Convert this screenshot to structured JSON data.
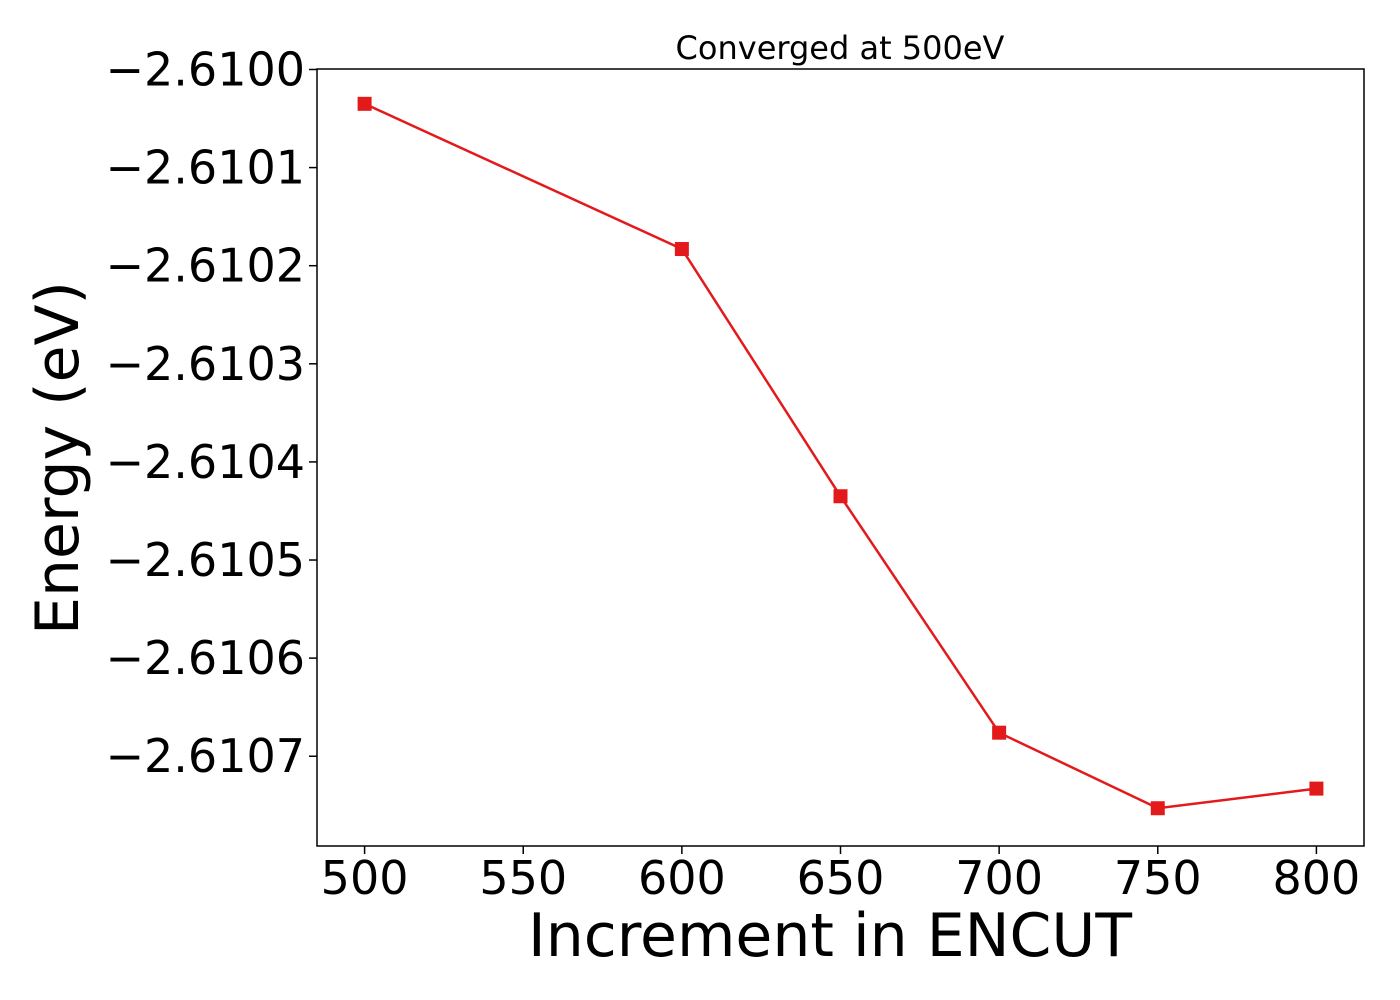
{
  "chart_data": {
    "type": "line",
    "title": "Converged at 500eV",
    "xlabel": "Increment in ENCUT",
    "ylabel": "Energy (eV)",
    "x": [
      500,
      600,
      650,
      700,
      750,
      800
    ],
    "series": [
      {
        "values": [
          -2.610035,
          -2.610183,
          -2.610435,
          -2.610676,
          -2.610753,
          -2.610733
        ],
        "color": "#e31a1c",
        "marker": "square"
      }
    ],
    "xlim": [
      485,
      815
    ],
    "ylim": [
      -2.6107915,
      -2.6099995
    ],
    "xticks": [
      500,
      550,
      600,
      650,
      700,
      750,
      800
    ],
    "xtick_labels": [
      "500",
      "550",
      "600",
      "650",
      "700",
      "750",
      "800"
    ],
    "yticks": [
      -2.61,
      -2.6101,
      -2.6102,
      -2.6103,
      -2.6104,
      -2.6105,
      -2.6106,
      -2.6107
    ],
    "ytick_labels": [
      "−2.6100",
      "−2.6101",
      "−2.6102",
      "−2.6103",
      "−2.6104",
      "−2.6105",
      "−2.6106",
      "−2.6107"
    ],
    "grid": false,
    "legend": "none"
  }
}
